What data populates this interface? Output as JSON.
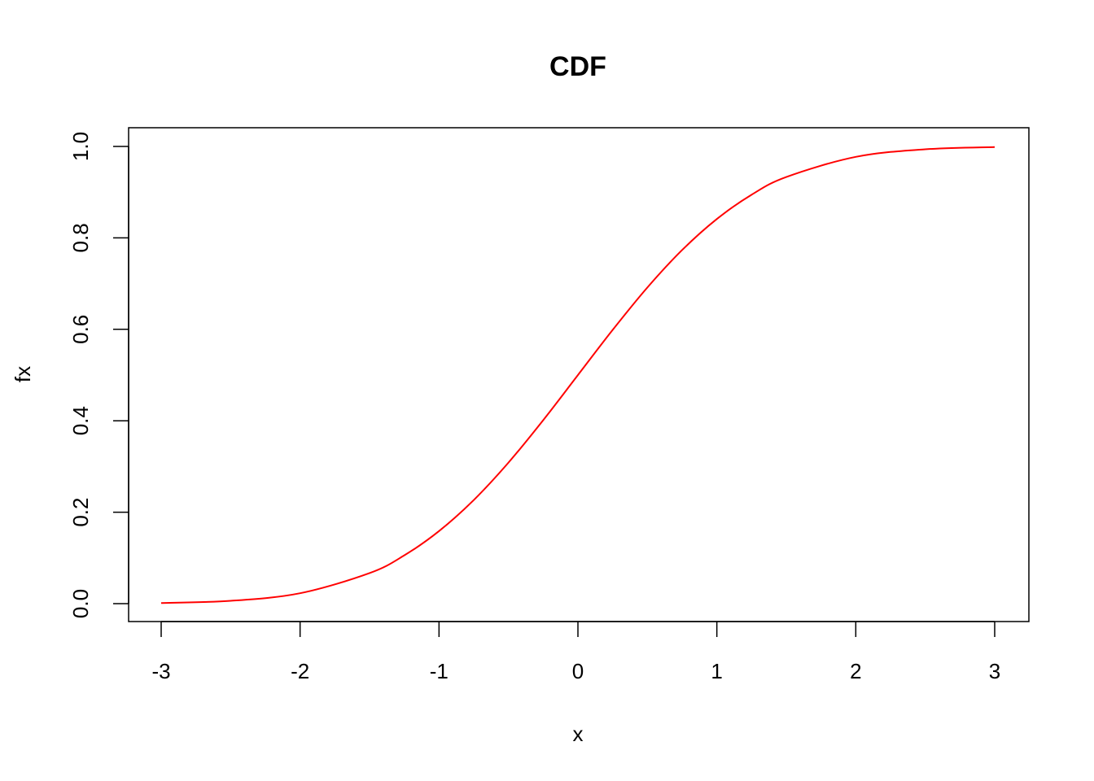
{
  "chart_data": {
    "type": "line",
    "title": "CDF",
    "xlabel": "x",
    "ylabel": "fx",
    "xlim": [
      -3,
      3
    ],
    "ylim": [
      0,
      1
    ],
    "x_ticks": [
      "-3",
      "-2",
      "-1",
      "0",
      "1",
      "2",
      "3"
    ],
    "y_ticks": [
      "0.0",
      "0.2",
      "0.4",
      "0.6",
      "0.8",
      "1.0"
    ],
    "grid": false,
    "series": [
      {
        "color": "#ff0000",
        "x": [
          -3.0,
          -2.5,
          -2.0,
          -1.5,
          -1.25,
          -1.0,
          -0.75,
          -0.5,
          -0.25,
          0.0,
          0.25,
          0.5,
          0.75,
          1.0,
          1.25,
          1.5,
          2.0,
          2.5,
          3.0
        ],
        "y": [
          0.0013,
          0.0062,
          0.0228,
          0.0668,
          0.1056,
          0.1587,
          0.2266,
          0.3085,
          0.4013,
          0.5,
          0.5987,
          0.6915,
          0.7734,
          0.8413,
          0.8944,
          0.9332,
          0.9772,
          0.9938,
          0.9987
        ]
      }
    ]
  }
}
